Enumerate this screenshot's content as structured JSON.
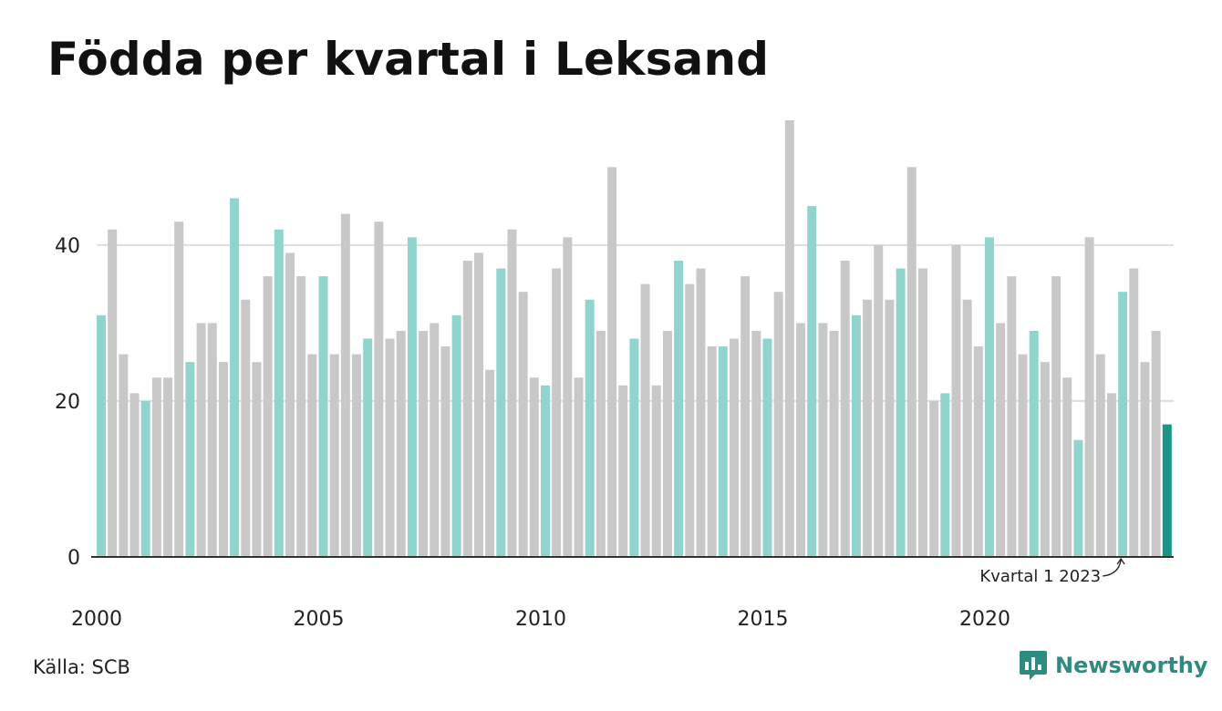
{
  "title": "Födda per kvartal i Leksand",
  "source": "Källa: SCB",
  "brand": {
    "name": "Newsworthy",
    "color": "#2c8c80",
    "icon": "newsworthy-logo-icon"
  },
  "colors": {
    "q1": "#8fd5cd",
    "other": "#c8c8c8",
    "latest": "#1a9688",
    "grid": "#dddddd",
    "axis": "#333333"
  },
  "chart_data": {
    "type": "bar",
    "title": "Födda per kvartal i Leksand",
    "xlabel": "",
    "ylabel": "",
    "ylim": [
      0,
      56
    ],
    "yticks": [
      0,
      20,
      40
    ],
    "xticks": [
      "2000",
      "2005",
      "2010",
      "2015",
      "2020"
    ],
    "grid": true,
    "first_period": "2000 Q1",
    "highlight": "Kvartal 1 highlighted; latest bar darker",
    "annotation": {
      "label": "Kvartal 1 2023",
      "period": "2023 Q1"
    },
    "values": [
      31,
      42,
      26,
      21,
      20,
      23,
      23,
      43,
      25,
      30,
      30,
      25,
      46,
      33,
      25,
      36,
      42,
      39,
      36,
      26,
      36,
      26,
      44,
      26,
      28,
      43,
      28,
      29,
      41,
      29,
      30,
      27,
      31,
      38,
      39,
      24,
      37,
      42,
      34,
      23,
      22,
      37,
      41,
      23,
      33,
      29,
      50,
      22,
      28,
      35,
      22,
      29,
      38,
      35,
      37,
      27,
      27,
      28,
      36,
      29,
      28,
      34,
      56,
      30,
      45,
      30,
      29,
      38,
      31,
      33,
      40,
      33,
      37,
      50,
      37,
      20,
      21,
      40,
      33,
      27,
      41,
      30,
      36,
      26,
      29,
      25,
      36,
      23,
      15,
      41,
      26,
      21,
      34,
      37,
      25,
      29,
      17
    ]
  }
}
